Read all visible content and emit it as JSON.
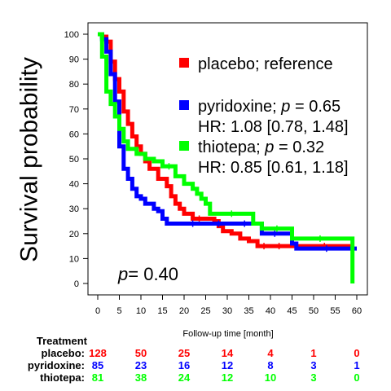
{
  "chart_data": {
    "type": "line",
    "subtype": "kaplan-meier",
    "xlabel": "Follow-up time [month]",
    "ylabel": "Survival probability",
    "xlim": [
      0,
      60
    ],
    "ylim": [
      0,
      100
    ],
    "xticks": [
      "0",
      "5",
      "10",
      "15",
      "20",
      "25",
      "30",
      "35",
      "40",
      "45",
      "50",
      "55",
      "60"
    ],
    "yticks": [
      "0",
      "10",
      "20",
      "30",
      "40",
      "50",
      "60",
      "70",
      "80",
      "90",
      "100"
    ],
    "grid": false,
    "legend_position": "top-right",
    "pvalue_text": "= 0.40",
    "pvalue_symbol": "p",
    "series": [
      {
        "name": "placebo; reference",
        "color": "#ff0000",
        "legend_line1": "placebo; reference",
        "legend_line2": "",
        "steps": [
          [
            0,
            100
          ],
          [
            1,
            99
          ],
          [
            2,
            97
          ],
          [
            3,
            89
          ],
          [
            4,
            82
          ],
          [
            5,
            77
          ],
          [
            6,
            69
          ],
          [
            7,
            64
          ],
          [
            8,
            59
          ],
          [
            9,
            55
          ],
          [
            10,
            52
          ],
          [
            11,
            49
          ],
          [
            12,
            46
          ],
          [
            14,
            42
          ],
          [
            16,
            39
          ],
          [
            17,
            35
          ],
          [
            18,
            32
          ],
          [
            19,
            30
          ],
          [
            20,
            28
          ],
          [
            22,
            26
          ],
          [
            25,
            26
          ],
          [
            27,
            25
          ],
          [
            28,
            23
          ],
          [
            29,
            21
          ],
          [
            31,
            20
          ],
          [
            33,
            18
          ],
          [
            35,
            17
          ],
          [
            37,
            15
          ],
          [
            40,
            15
          ],
          [
            44,
            15
          ],
          [
            46,
            15
          ],
          [
            59,
            15
          ]
        ],
        "end": 59
      },
      {
        "name": "pyridoxine",
        "color": "#0000ff",
        "legend_line1": "pyridoxine; ",
        "legend_line1_p": "p",
        "legend_line1_val": " = 0.65",
        "legend_line2": "HR: 1.08 [0.78, 1.48]",
        "steps": [
          [
            0,
            100
          ],
          [
            1,
            98
          ],
          [
            2,
            93
          ],
          [
            3,
            84
          ],
          [
            4,
            73
          ],
          [
            5,
            55
          ],
          [
            6,
            46
          ],
          [
            7,
            42
          ],
          [
            8,
            38
          ],
          [
            9,
            35
          ],
          [
            10,
            34
          ],
          [
            11,
            32
          ],
          [
            13,
            30
          ],
          [
            14,
            29
          ],
          [
            15,
            26
          ],
          [
            16,
            24
          ],
          [
            18,
            24
          ],
          [
            26,
            24
          ],
          [
            30,
            24
          ],
          [
            38,
            20
          ],
          [
            44,
            20
          ],
          [
            45,
            16
          ],
          [
            46,
            14
          ],
          [
            60,
            14
          ]
        ],
        "end": 60
      },
      {
        "name": "thiotepa",
        "color": "#00ff00",
        "legend_line1": "thiotepa; ",
        "legend_line1_p": "p",
        "legend_line1_val": " = 0.32",
        "legend_line2": "HR: 0.85 [0.61, 1.18]",
        "steps": [
          [
            0,
            100
          ],
          [
            1,
            91
          ],
          [
            2,
            77
          ],
          [
            3,
            72
          ],
          [
            4,
            67
          ],
          [
            5,
            62
          ],
          [
            6,
            57
          ],
          [
            7,
            54
          ],
          [
            9,
            52
          ],
          [
            11,
            50
          ],
          [
            13,
            49
          ],
          [
            15,
            47
          ],
          [
            18,
            43
          ],
          [
            20,
            40
          ],
          [
            22,
            38
          ],
          [
            23,
            36
          ],
          [
            24,
            34
          ],
          [
            25,
            32
          ],
          [
            26,
            28
          ],
          [
            36,
            24
          ],
          [
            38,
            22
          ],
          [
            45,
            18
          ],
          [
            58,
            18
          ],
          [
            59,
            0
          ]
        ],
        "end": 59
      }
    ]
  },
  "risk_table": {
    "title": "Treatment",
    "rows": [
      {
        "label": "placebo:",
        "color": "#ff0000",
        "values": [
          "128",
          "50",
          "25",
          "14",
          "4",
          "1",
          "0"
        ]
      },
      {
        "label": "pyridoxine:",
        "color": "#0000ff",
        "values": [
          "85",
          "23",
          "16",
          "12",
          "8",
          "3",
          "1"
        ]
      },
      {
        "label": "thiotepa:",
        "color": "#00ff00",
        "values": [
          "81",
          "38",
          "24",
          "12",
          "10",
          "3",
          "0"
        ]
      }
    ],
    "times": [
      0,
      10,
      20,
      30,
      40,
      50,
      60
    ]
  }
}
